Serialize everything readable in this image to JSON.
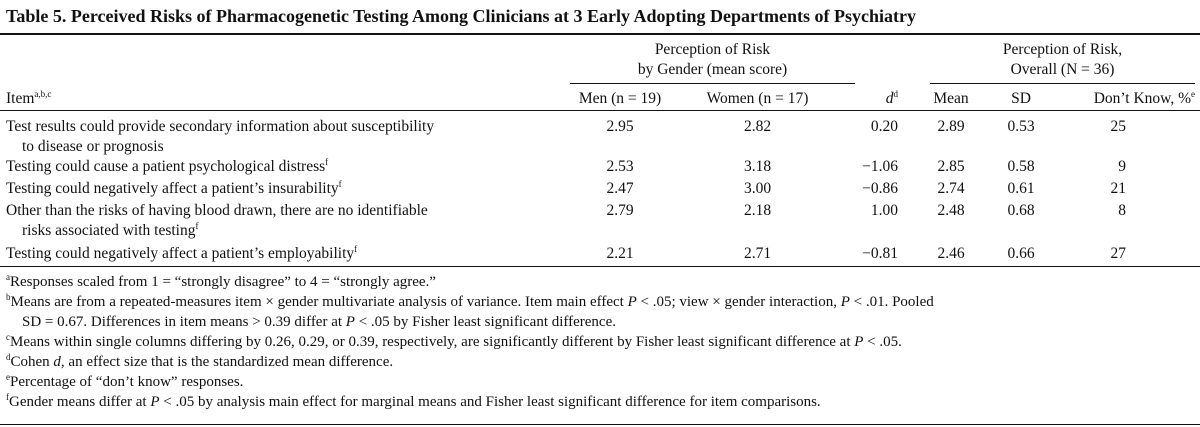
{
  "title": "Table 5. Perceived Risks of Pharmacogenetic Testing Among Clinicians at 3 Early Adopting Departments of Psychiatry",
  "header": {
    "group_gender": [
      "Perception of Risk",
      "by Gender (mean score)"
    ],
    "group_overall": [
      "Perception of Risk,",
      "Overall (N = 36)"
    ],
    "columns": [
      {
        "text": "Item",
        "sup": "a,b,c"
      },
      {
        "text": "Men (n = 19)"
      },
      {
        "text": "Women (n = 17)"
      },
      {
        "text": "d",
        "sup": "d"
      },
      {
        "text": "Mean"
      },
      {
        "text": "SD"
      },
      {
        "text": "Don’t Know, %",
        "sup": "e"
      }
    ]
  },
  "rows": [
    {
      "item": [
        "Test results could provide secondary information about susceptibility",
        "to disease or prognosis"
      ],
      "cells": [
        "2.95",
        "2.82",
        "0.20",
        "2.89",
        "0.53",
        "25"
      ]
    },
    {
      "item": [
        "Testing could cause a patient psychological distress"
      ],
      "sup": "f",
      "cells": [
        "2.53",
        "3.18",
        "−1.06",
        "2.85",
        "0.58",
        "9"
      ]
    },
    {
      "item": [
        "Testing could negatively affect a patient’s insurability"
      ],
      "sup": "f",
      "cells": [
        "2.47",
        "3.00",
        "−0.86",
        "2.74",
        "0.61",
        "21"
      ]
    },
    {
      "item": [
        "Other than the risks of having blood drawn, there are no identifiable",
        "risks associated with testing"
      ],
      "sup": "f",
      "cells": [
        "2.79",
        "2.18",
        "1.00",
        "2.48",
        "0.68",
        "8"
      ]
    },
    {
      "item": [
        "Testing could negatively affect a patient’s employability"
      ],
      "sup": "f",
      "cells": [
        "2.21",
        "2.71",
        "−0.81",
        "2.46",
        "0.66",
        "27"
      ]
    }
  ],
  "footnotes": [
    {
      "mark": "a",
      "lines": [
        [
          "Responses scaled from 1 = “strongly disagree” to 4 = “strongly agree.”"
        ]
      ]
    },
    {
      "mark": "b",
      "lines": [
        [
          "Means are from a repeated-measures item × gender multivariate analysis of variance. Item main effect ",
          "P",
          " < .05; view × gender interaction, ",
          "P",
          " < .01. Pooled"
        ],
        [
          "SD = 0.67. Differences in item means > 0.39 differ at ",
          "P",
          " < .05 by Fisher least significant difference."
        ]
      ]
    },
    {
      "mark": "c",
      "lines": [
        [
          "Means within single columns differing by 0.26, 0.29, or 0.39, respectively, are significantly different by Fisher least significant difference at ",
          "P",
          " < .05."
        ]
      ]
    },
    {
      "mark": "d",
      "lines": [
        [
          "Cohen ",
          "d",
          ", an effect size that is the standardized mean difference."
        ]
      ]
    },
    {
      "mark": "e",
      "lines": [
        [
          "Percentage of “don’t know” responses."
        ]
      ]
    },
    {
      "mark": "f",
      "lines": [
        [
          "Gender means differ at ",
          "P",
          " < .05 by analysis main effect for marginal means and Fisher least significant difference for item comparisons."
        ]
      ]
    }
  ]
}
